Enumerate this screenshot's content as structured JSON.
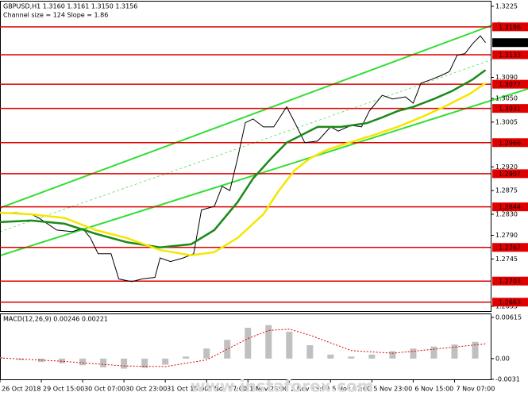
{
  "chart_data": [
    {
      "type": "line",
      "title": "GBPUSD,H1  1.3160 1.3161 1.3150 1.3156",
      "subtitle": "Channel size = 124  Slope = 1.86",
      "xlim": [
        0,
        190
      ],
      "xticks": [
        {
          "value": 0,
          "label": "26 Oct 2018"
        },
        {
          "value": 16,
          "label": "29 Oct 15:00"
        },
        {
          "value": 32,
          "label": "30 Oct 07:00"
        },
        {
          "value": 48,
          "label": "30 Oct 23:00"
        },
        {
          "value": 64,
          "label": "31 Oct 15:00"
        },
        {
          "value": 80,
          "label": "1 Nov 07:00"
        },
        {
          "value": 96,
          "label": "1 Nov 23:00"
        },
        {
          "value": 112,
          "label": "2 Nov 15:00"
        },
        {
          "value": 128,
          "label": "5 Nov 07:00"
        },
        {
          "value": 144,
          "label": "5 Nov 23:00"
        },
        {
          "value": 160,
          "label": "6 Nov 15:00"
        },
        {
          "value": 176,
          "label": "7 Nov 07:00"
        }
      ],
      "ylim": [
        1.2646,
        1.3234
      ],
      "yticks": [
        1.3225,
        {
          "value": 1.309,
          "label": "1.3090"
        },
        {
          "value": 1.305,
          "label": "1.3050"
        },
        1.3005,
        {
          "value": 1.292,
          "label": "1.2920"
        },
        1.2875,
        {
          "value": 1.283,
          "label": "1.2830"
        },
        {
          "value": 1.279,
          "label": "1.2790"
        },
        1.2745,
        1.2655
      ],
      "levels": [
        1.3186,
        1.3133,
        1.3077,
        1.3031,
        1.2966,
        1.2907,
        1.2844,
        1.2767,
        1.2703,
        1.2663
      ],
      "level_color": "#e00000",
      "last_price": 1.3156,
      "series": [
        {
          "color": "#000000",
          "x": [
            0,
            6,
            12,
            15,
            22,
            28,
            32,
            35,
            38,
            43,
            46,
            51,
            55,
            60,
            62,
            66,
            71,
            75,
            78,
            83,
            86,
            89,
            92,
            95,
            98,
            102,
            106,
            111,
            115,
            118,
            123,
            128,
            131,
            136,
            140,
            143,
            148,
            152,
            157,
            160,
            163,
            167,
            171,
            174,
            177,
            180,
            183,
            186,
            188
          ],
          "values": [
            1.2833,
            1.2833,
            1.283,
            1.2823,
            1.28,
            1.2797,
            1.2803,
            1.2785,
            1.2755,
            1.2755,
            1.2707,
            1.2702,
            1.2707,
            1.271,
            1.2747,
            1.274,
            1.2747,
            1.2755,
            1.2838,
            1.2845,
            1.2883,
            1.2875,
            1.2936,
            1.3004,
            1.3011,
            1.2996,
            1.2996,
            1.3034,
            1.2996,
            1.2966,
            1.2969,
            1.2996,
            1.2988,
            1.2999,
            1.2996,
            1.3026,
            1.3056,
            1.3049,
            1.3053,
            1.3041,
            1.3079,
            1.3086,
            1.3094,
            1.3101,
            1.3132,
            1.3135,
            1.3154,
            1.3169,
            1.3156
          ]
        },
        {
          "color": "#1a8a1a",
          "x": [
            0,
            12,
            25,
            37,
            49,
            62,
            74,
            83,
            92,
            98,
            105,
            111,
            117,
            123,
            132,
            142,
            148,
            154,
            160,
            168,
            175,
            183,
            188
          ],
          "values": [
            1.2815,
            1.2818,
            1.2812,
            1.2793,
            1.2777,
            1.2767,
            1.2773,
            1.28,
            1.2853,
            1.2898,
            1.2936,
            1.2966,
            1.2981,
            1.2996,
            1.2996,
            1.3003,
            1.3014,
            1.3026,
            1.3034,
            1.3049,
            1.3064,
            1.3086,
            1.3104
          ]
        },
        {
          "color": "#f5e600",
          "x": [
            0,
            12,
            25,
            37,
            49,
            62,
            74,
            83,
            92,
            102,
            108,
            114,
            120,
            126,
            135,
            145,
            154,
            163,
            172,
            182,
            188
          ],
          "values": [
            1.2833,
            1.283,
            1.2823,
            1.28,
            1.2785,
            1.2762,
            1.2752,
            1.2758,
            1.2785,
            1.283,
            1.2875,
            1.2913,
            1.2936,
            1.2951,
            1.2966,
            1.2981,
            1.2996,
            1.3014,
            1.3034,
            1.3059,
            1.3079
          ]
        }
      ]
    },
    {
      "type": "bar",
      "title": "MACD(12,26,9) 0.00246 0.00221",
      "xlim": [
        0,
        190
      ],
      "ylim": [
        -0.0031,
        0.00662
      ],
      "yticks": [
        0.00615,
        {
          "value": 0,
          "label": "0.00"
        },
        -0.0031
      ],
      "color": "#c0c0c0",
      "x": [
        0,
        8,
        16,
        24,
        32,
        40,
        48,
        56,
        64,
        72,
        80,
        88,
        96,
        104,
        112,
        120,
        128,
        136,
        144,
        152,
        160,
        168,
        176,
        184
      ],
      "values": [
        0.0002,
        -0.0002,
        -0.0005,
        -0.0007,
        -0.001,
        -0.0013,
        -0.0015,
        -0.0014,
        -0.0009,
        0.0003,
        0.0015,
        0.0028,
        0.0046,
        0.005,
        0.004,
        0.002,
        0.0006,
        0.0003,
        0.0006,
        0.0011,
        0.0015,
        0.0018,
        0.0021,
        0.0025
      ],
      "signal": {
        "color": "#e00000",
        "x": [
          0,
          24,
          48,
          64,
          80,
          96,
          104,
          112,
          120,
          136,
          152,
          168,
          188
        ],
        "values": [
          0.0001,
          -0.0004,
          -0.0011,
          -0.0012,
          -0.0002,
          0.003,
          0.0042,
          0.0044,
          0.0035,
          0.0012,
          0.0008,
          0.0014,
          0.0022
        ]
      }
    }
  ],
  "watermark": "www.instaforex.com"
}
